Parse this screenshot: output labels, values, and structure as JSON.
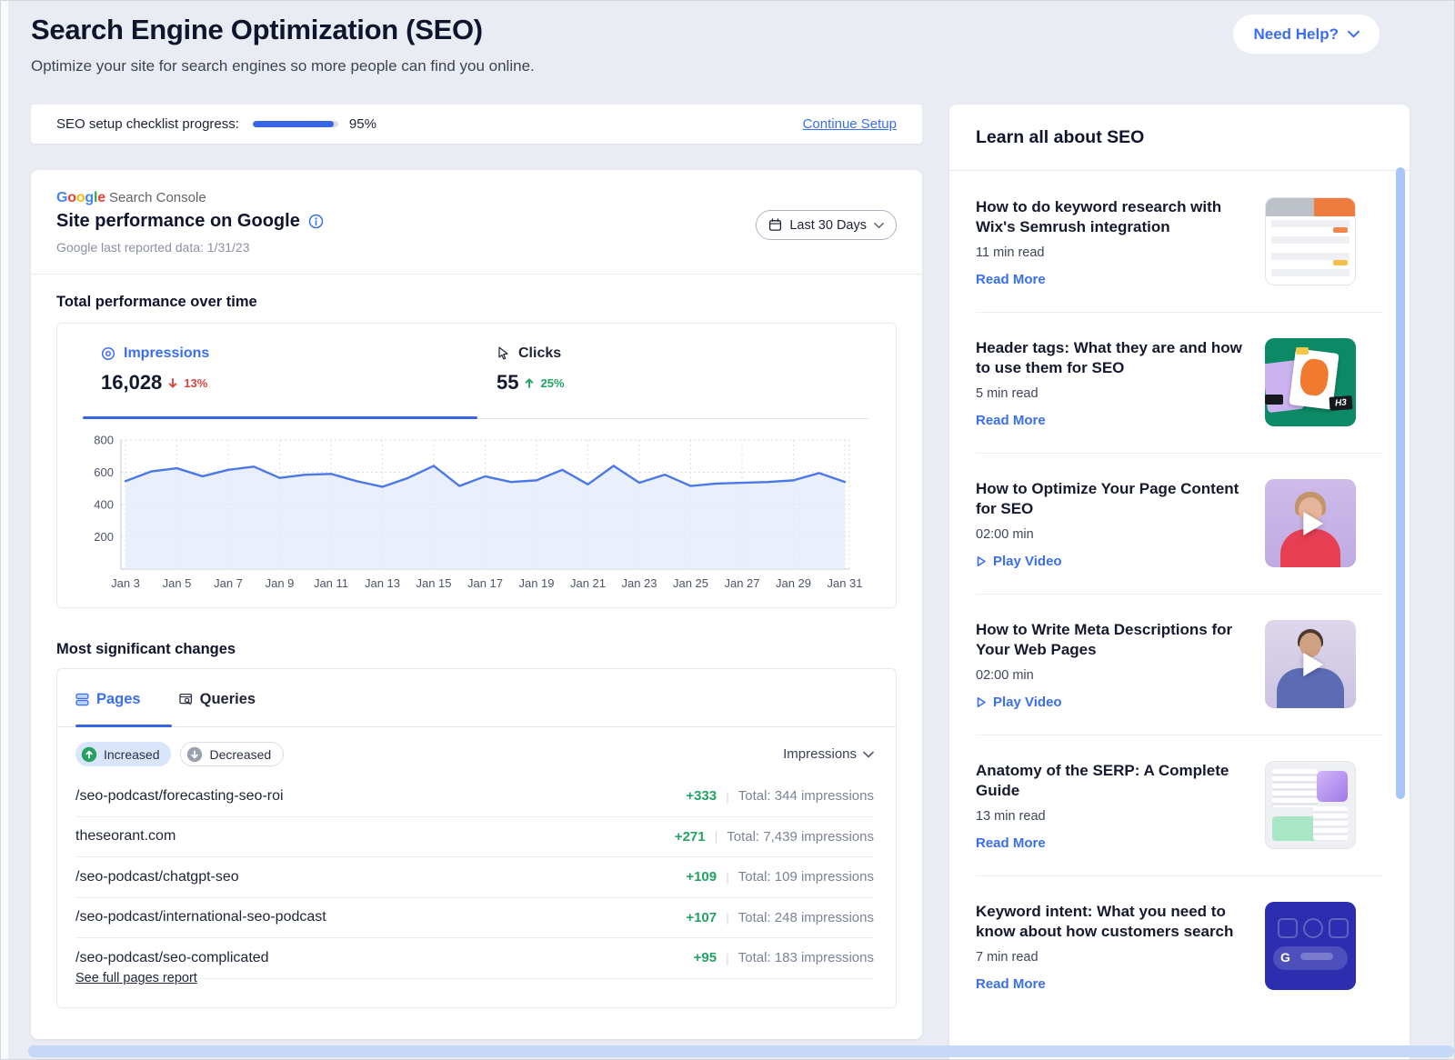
{
  "page": {
    "title": "Search Engine Optimization (SEO)",
    "subtitle": "Optimize your site for search engines so more people can find you online.",
    "need_help_label": "Need Help?"
  },
  "checklist": {
    "label": "SEO setup checklist progress:",
    "progress_percent": 95,
    "progress_label": "95%",
    "continue_label": "Continue Setup"
  },
  "console_card": {
    "logo_text": "Google",
    "logo_suffix": "Search Console",
    "title": "Site performance on Google",
    "last_reported": "Google last reported data: 1/31/23",
    "date_range_label": "Last 30 Days"
  },
  "performance": {
    "section_title": "Total performance over time",
    "impressions_label": "Impressions",
    "impressions_value": "16,028",
    "impressions_change": "13%",
    "impressions_direction": "down",
    "clicks_label": "Clicks",
    "clicks_value": "55",
    "clicks_change": "25%",
    "clicks_direction": "up"
  },
  "chart_data": {
    "type": "line",
    "series_name": "Impressions",
    "x": [
      "Jan 3",
      "Jan 4",
      "Jan 5",
      "Jan 6",
      "Jan 7",
      "Jan 8",
      "Jan 9",
      "Jan 10",
      "Jan 11",
      "Jan 12",
      "Jan 13",
      "Jan 14",
      "Jan 15",
      "Jan 16",
      "Jan 17",
      "Jan 18",
      "Jan 19",
      "Jan 20",
      "Jan 21",
      "Jan 22",
      "Jan 23",
      "Jan 24",
      "Jan 25",
      "Jan 26",
      "Jan 27",
      "Jan 28",
      "Jan 29",
      "Jan 30",
      "Jan 31"
    ],
    "values": [
      545,
      605,
      625,
      575,
      615,
      635,
      565,
      585,
      590,
      545,
      510,
      565,
      640,
      515,
      575,
      540,
      550,
      615,
      525,
      640,
      535,
      585,
      515,
      530,
      535,
      540,
      550,
      595,
      540
    ],
    "tick_labels": [
      "Jan 3",
      "Jan 5",
      "Jan 7",
      "Jan 9",
      "Jan 11",
      "Jan 13",
      "Jan 15",
      "Jan 17",
      "Jan 19",
      "Jan 21",
      "Jan 23",
      "Jan 25",
      "Jan 27",
      "Jan 29",
      "Jan 31"
    ],
    "yticks": [
      200,
      400,
      600,
      800
    ],
    "ylim": [
      0,
      800
    ],
    "grid": true,
    "area_fill": true,
    "legend_position": "none"
  },
  "changes": {
    "section_title": "Most significant changes",
    "tabs": [
      {
        "label": "Pages",
        "active": true
      },
      {
        "label": "Queries",
        "active": false
      }
    ],
    "filters": [
      {
        "label": "Increased",
        "selected": true
      },
      {
        "label": "Decreased",
        "selected": false
      }
    ],
    "metric_dropdown": "Impressions",
    "rows": [
      {
        "name": "/seo-podcast/forecasting-seo-roi",
        "change": "+333",
        "total": "Total: 344 impressions"
      },
      {
        "name": "theseorant.com",
        "change": "+271",
        "total": "Total: 7,439 impressions"
      },
      {
        "name": "/seo-podcast/chatgpt-seo",
        "change": "+109",
        "total": "Total: 109 impressions"
      },
      {
        "name": "/seo-podcast/international-seo-podcast",
        "change": "+107",
        "total": "Total: 248 impressions"
      },
      {
        "name": "/seo-podcast/seo-complicated",
        "change": "+95",
        "total": "Total: 183 impressions"
      }
    ],
    "footer_link": "See full pages report"
  },
  "learn": {
    "title": "Learn all about SEO",
    "items": [
      {
        "title": "How to do keyword research with Wix's Semrush integration",
        "meta": "11 min read",
        "action": "Read More",
        "action_type": "read",
        "thumb": "semrush-table",
        "badge": ""
      },
      {
        "title": "Header tags: What they are and how to use them for SEO",
        "meta": "5 min read",
        "action": "Read More",
        "action_type": "read",
        "thumb": "header-tags",
        "badge": "H3"
      },
      {
        "title": "How to Optimize Your Page Content for SEO",
        "meta": "02:00 min",
        "action": "Play Video",
        "action_type": "video",
        "thumb": "video-woman",
        "badge": ""
      },
      {
        "title": "How to Write Meta Descriptions for Your Web Pages",
        "meta": "02:00 min",
        "action": "Play Video",
        "action_type": "video",
        "thumb": "video-man",
        "badge": ""
      },
      {
        "title": "Anatomy of the SERP: A Complete Guide",
        "meta": "13 min read",
        "action": "Read More",
        "action_type": "read",
        "thumb": "serp-guide",
        "badge": ""
      },
      {
        "title": "Keyword intent: What you need to know about how customers search",
        "meta": "7 min read",
        "action": "Read More",
        "action_type": "read",
        "thumb": "keyword-intent",
        "badge": "G"
      }
    ]
  },
  "colors": {
    "accent_blue": "#3a6ef0",
    "progress_blue": "#3765e3",
    "chart_line": "#4b78e8",
    "positive_green": "#21a463",
    "negative_red": "#d9453c",
    "chip_selected_bg": "#d9e5fb",
    "scrollbar_blue": "#a6c5f8",
    "page_bg": "#e9ecf2",
    "google_blue": "#4285F4",
    "google_red": "#EA4335",
    "google_yellow": "#FBBC05",
    "google_green": "#34A853"
  }
}
